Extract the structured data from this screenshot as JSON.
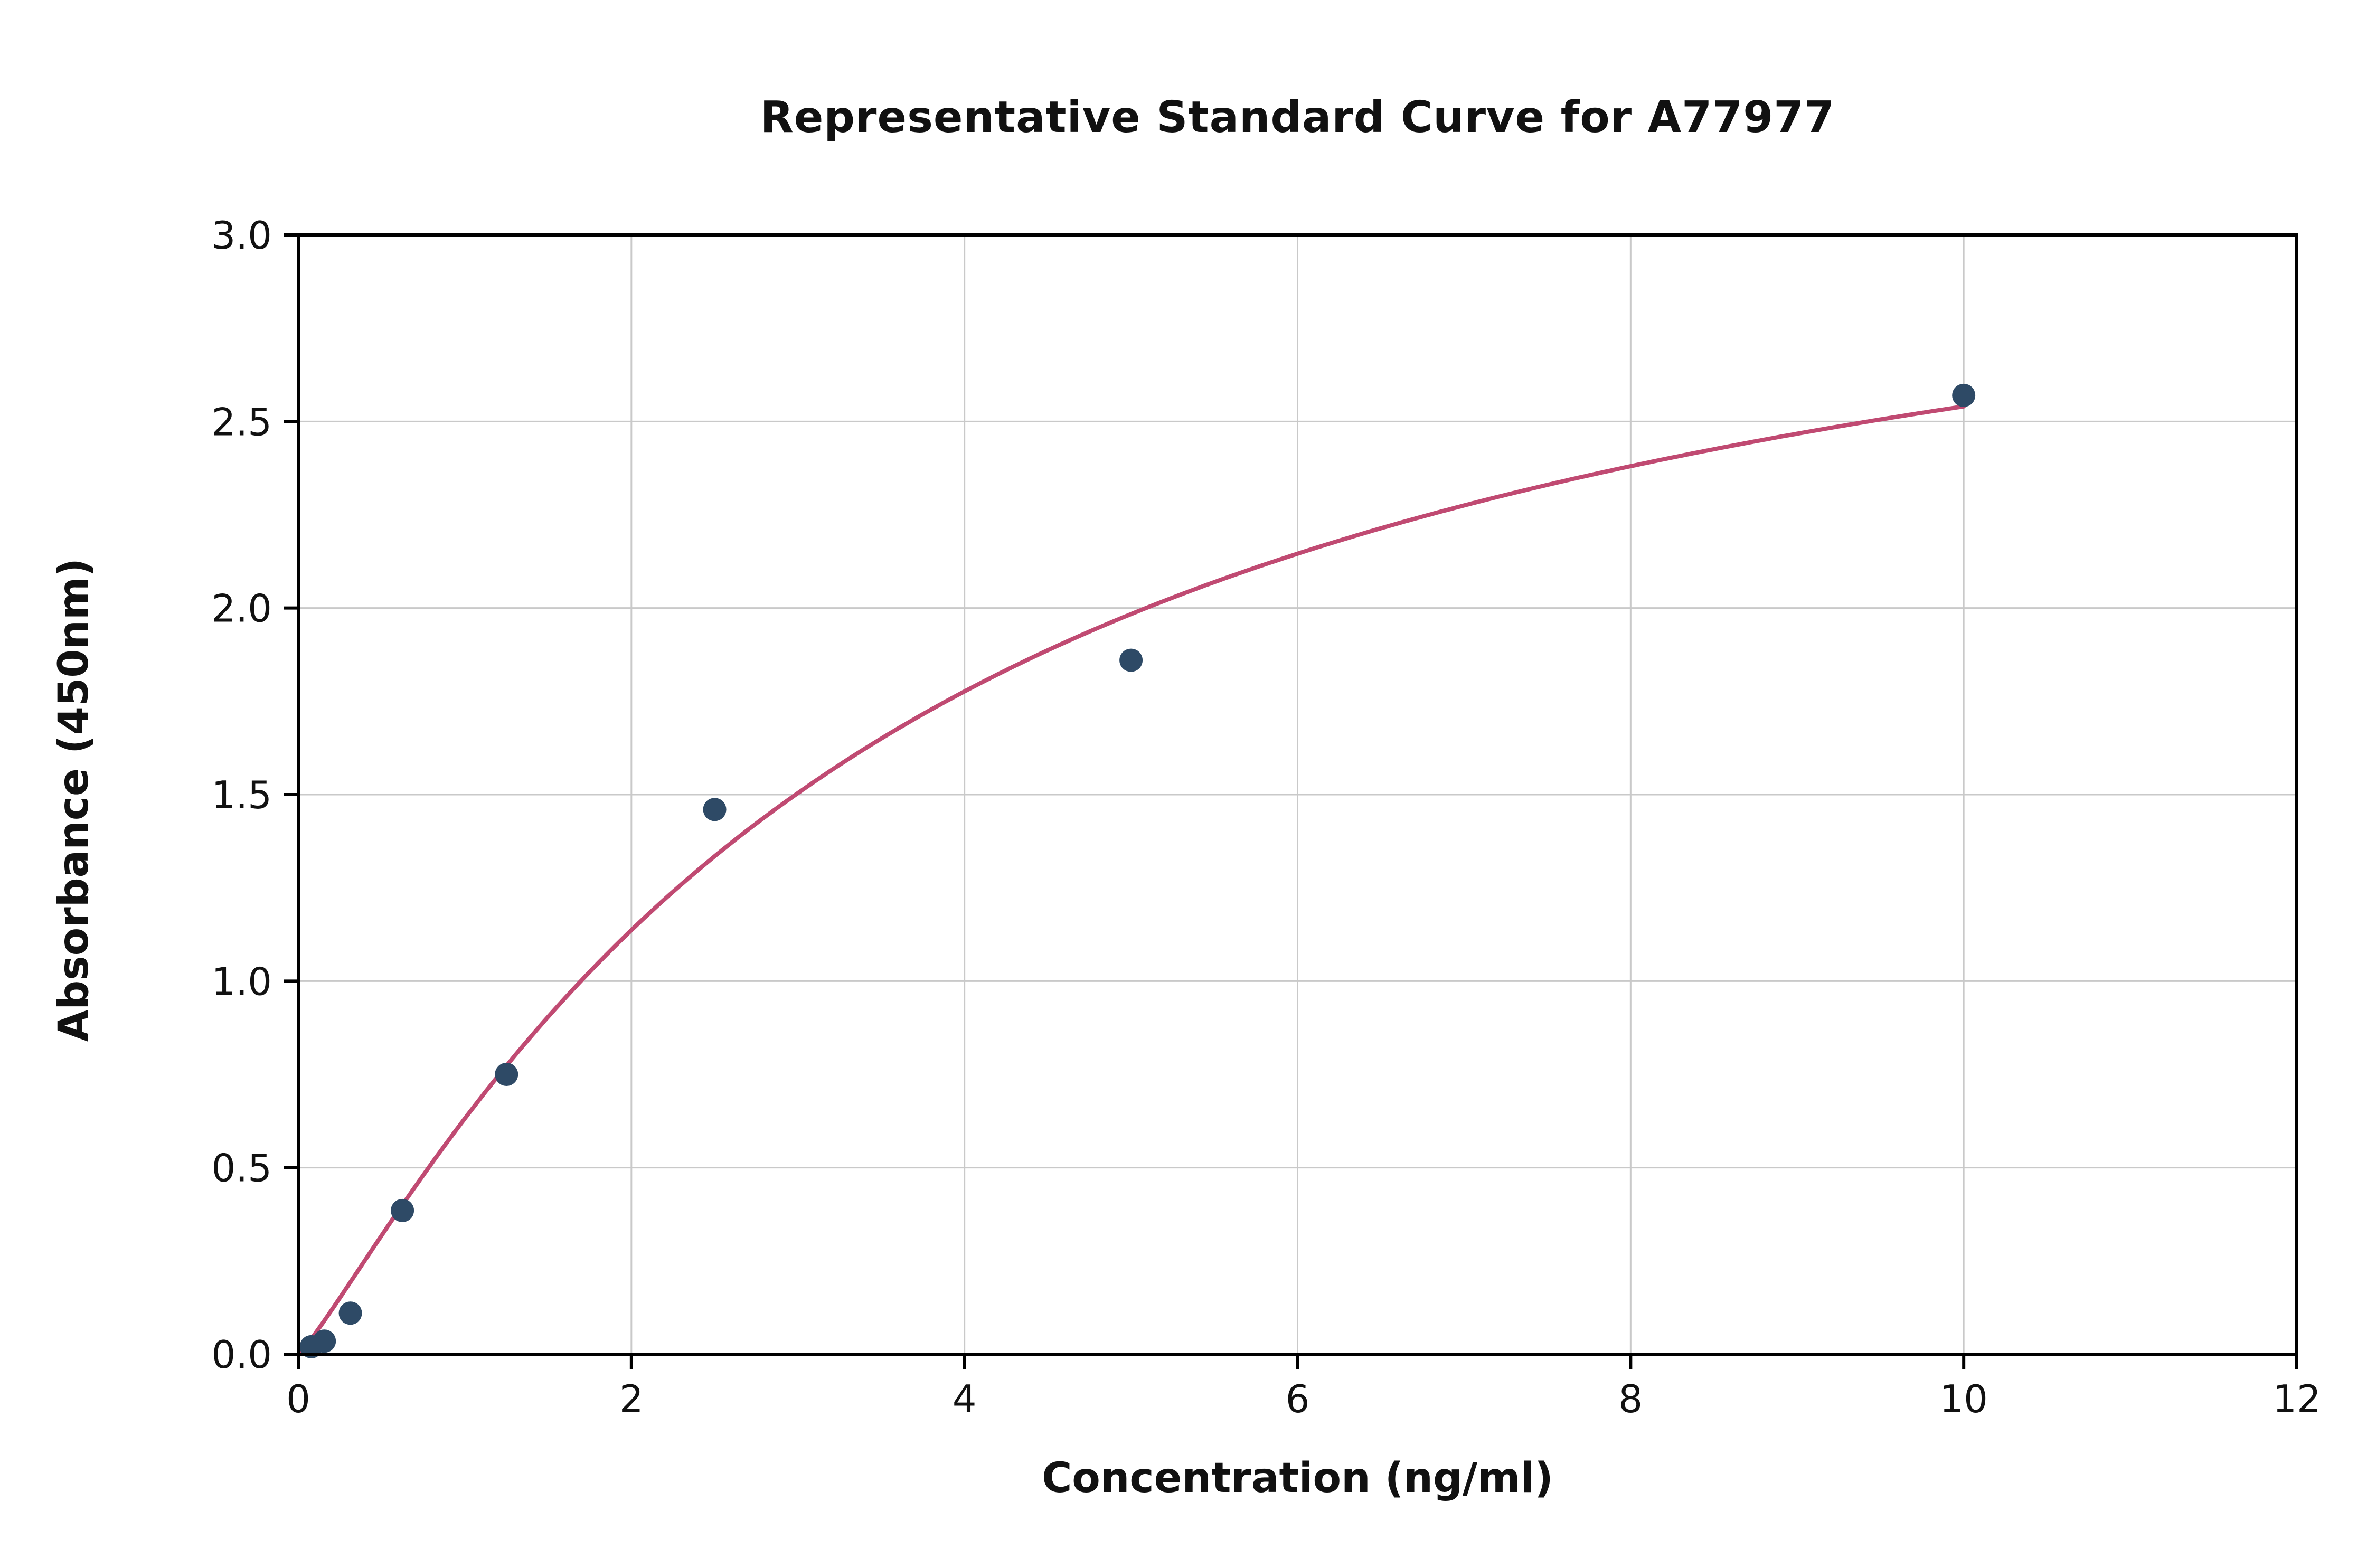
{
  "page": {
    "background": "#ffffff"
  },
  "chart_data": {
    "type": "scatter",
    "title": "Representative Standard Curve for A77977",
    "xlabel": "Concentration (ng/ml)",
    "ylabel": "Absorbance (450nm)",
    "xlim": [
      0,
      12
    ],
    "ylim": [
      0,
      3.0
    ],
    "x_ticks": [
      0,
      2,
      4,
      6,
      8,
      10,
      12
    ],
    "x_tick_labels": [
      "0",
      "2",
      "4",
      "6",
      "8",
      "10",
      "12"
    ],
    "y_ticks": [
      0,
      0.5,
      1.0,
      1.5,
      2.0,
      2.5,
      3.0
    ],
    "y_tick_labels": [
      "0.0",
      "0.5",
      "1.0",
      "1.5",
      "2.0",
      "2.5",
      "3.0"
    ],
    "grid": true,
    "legend": "none",
    "points": [
      {
        "x": 0.078,
        "y": 0.02
      },
      {
        "x": 0.156,
        "y": 0.035
      },
      {
        "x": 0.3125,
        "y": 0.11
      },
      {
        "x": 0.625,
        "y": 0.385
      },
      {
        "x": 1.25,
        "y": 0.75
      },
      {
        "x": 2.5,
        "y": 1.46
      },
      {
        "x": 5.0,
        "y": 1.86
      },
      {
        "x": 10.0,
        "y": 2.57
      }
    ],
    "fit_curve": {
      "model": "4PL",
      "params": {
        "a": 0.0,
        "b": 1.15,
        "c": 3.5,
        "d": 3.3
      },
      "x_range": [
        0.0,
        10.0
      ]
    },
    "colors": {
      "point": "#2e4a66",
      "curve": "#c04a72",
      "grid": "#c9c9c9",
      "axis": "#000000",
      "tick_label": "#111111"
    }
  }
}
